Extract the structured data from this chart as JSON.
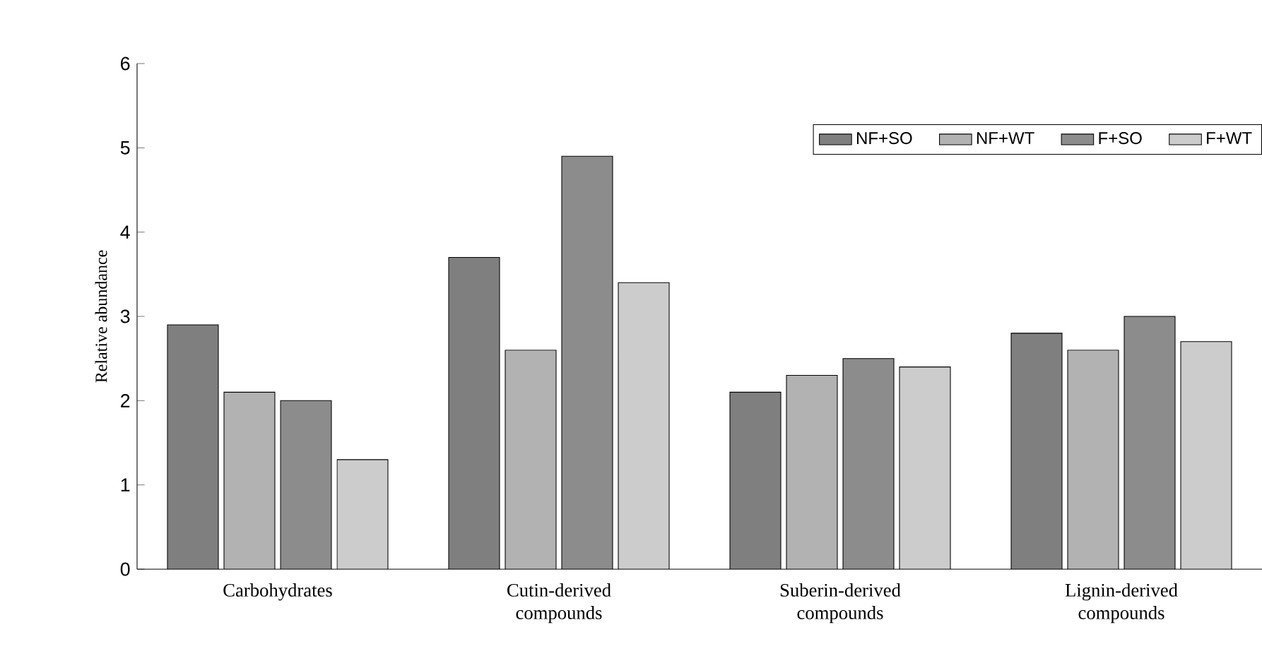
{
  "chart_data": {
    "type": "bar",
    "ylabel": "Relative abundance",
    "categories": [
      "Carbohydrates",
      "Cutin-derived compounds",
      "Suberin-derived compounds",
      "Lignin-derived compounds"
    ],
    "series": [
      {
        "name": "NF+SO",
        "color": "#7f7f7f",
        "values": [
          2.9,
          3.7,
          2.1,
          2.8
        ]
      },
      {
        "name": "NF+WT",
        "color": "#b2b2b2",
        "values": [
          2.1,
          2.6,
          2.3,
          2.6
        ]
      },
      {
        "name": "F+SO",
        "color": "#8c8c8c",
        "values": [
          2.0,
          4.9,
          2.5,
          3.0
        ]
      },
      {
        "name": "F+WT",
        "color": "#cccccc",
        "values": [
          1.3,
          3.4,
          2.4,
          2.7
        ]
      }
    ],
    "ylim": [
      0,
      6
    ],
    "yticks": [
      0,
      1,
      2,
      3,
      4,
      5,
      6
    ],
    "grid": false,
    "legend": "top right"
  }
}
